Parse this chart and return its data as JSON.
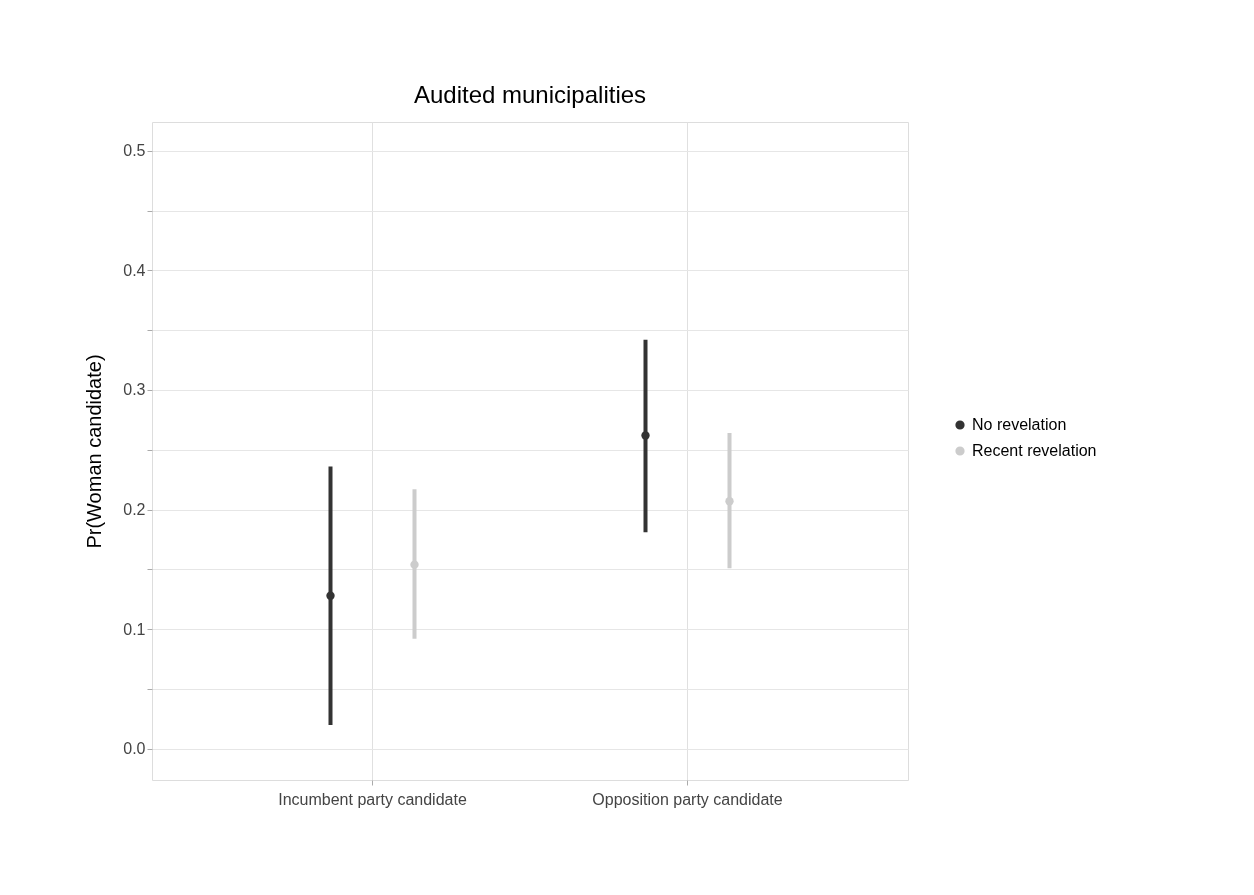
{
  "chart_data": {
    "type": "scatter",
    "title": "Audited municipalities",
    "ylabel": "Pr(Woman candidate)",
    "categories": [
      "Incumbent party candidate",
      "Opposition party candidate"
    ],
    "series": [
      {
        "name": "No revelation",
        "color": "#333333",
        "values": [
          0.128,
          0.262
        ],
        "errors": [
          [
            0.02,
            0.236
          ],
          [
            0.181,
            0.342
          ]
        ]
      },
      {
        "name": "Recent revelation",
        "color": "#cccccc",
        "values": [
          0.154,
          0.207
        ],
        "errors": [
          [
            0.092,
            0.217
          ],
          [
            0.151,
            0.264
          ]
        ]
      }
    ],
    "ylim": [
      -0.026,
      0.524
    ],
    "yticks": [
      {
        "value": 0,
        "label": "0.0"
      },
      {
        "value": 0.05,
        "label": null
      },
      {
        "value": 0.1,
        "label": "0.1"
      },
      {
        "value": 0.15,
        "label": null
      },
      {
        "value": 0.2,
        "label": "0.2"
      },
      {
        "value": 0.25,
        "label": null
      },
      {
        "value": 0.3,
        "label": "0.3"
      },
      {
        "value": 0.35,
        "label": null
      },
      {
        "value": 0.4,
        "label": "0.4"
      },
      {
        "value": 0.45,
        "label": null
      },
      {
        "value": 0.5,
        "label": "0.5"
      }
    ],
    "grid": true,
    "legend": "right",
    "marker": "circle"
  }
}
